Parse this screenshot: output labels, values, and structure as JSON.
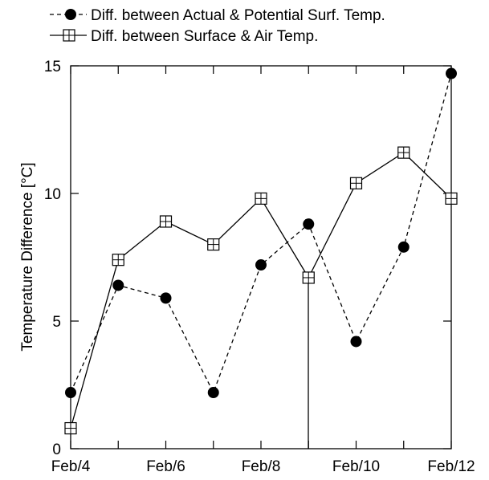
{
  "chart_data": {
    "type": "line",
    "title": "",
    "xlabel": "",
    "ylabel": "Temperature Difference [°C]",
    "x": [
      "Feb/4",
      "Feb/5",
      "Feb/6",
      "Feb/7",
      "Feb/8",
      "Feb/9",
      "Feb/10",
      "Feb/11",
      "Feb/12"
    ],
    "x_tick_labels": [
      "Feb/4",
      "Feb/6",
      "Feb/8",
      "Feb/10",
      "Feb/12"
    ],
    "ylim": [
      0,
      15
    ],
    "y_ticks": [
      0,
      5,
      10,
      15
    ],
    "grid": false,
    "legend_position": "top",
    "series": [
      {
        "name": "Diff. between Actual & Potential Surf. Temp.",
        "marker": "filled-circle",
        "line_style": "dashed",
        "values": [
          2.2,
          6.4,
          5.9,
          2.2,
          7.2,
          8.8,
          4.2,
          7.9,
          14.7
        ]
      },
      {
        "name": "Diff. between Surface & Air Temp.",
        "marker": "square-cross",
        "line_style": "solid",
        "values": [
          0.8,
          7.4,
          8.9,
          8.0,
          9.8,
          6.7,
          10.4,
          11.6,
          9.8
        ]
      }
    ]
  }
}
